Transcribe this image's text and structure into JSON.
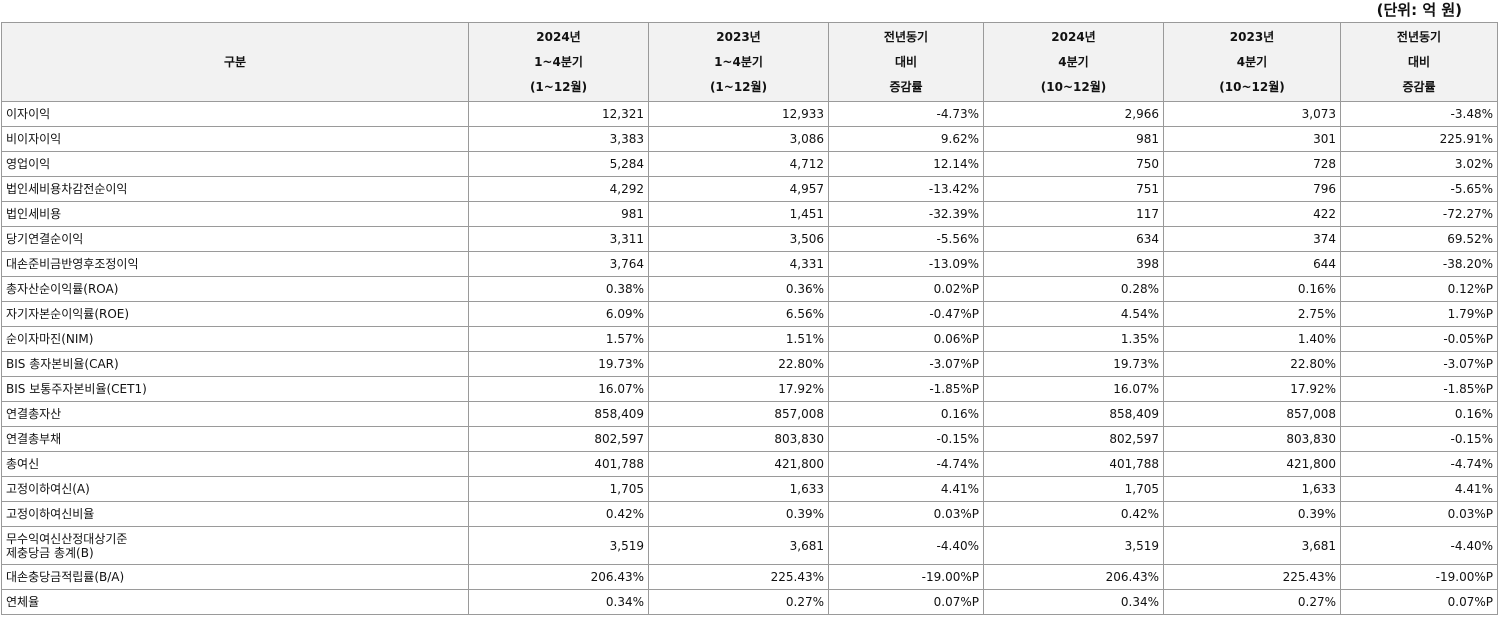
{
  "unit": "(단위: 억 원)",
  "table": {
    "header": [
      [
        "구분"
      ],
      [
        "2024년",
        "1~4분기",
        "(1~12월)"
      ],
      [
        "2023년",
        "1~4분기",
        "(1~12월)"
      ],
      [
        "전년동기",
        "대비",
        "증감률"
      ],
      [
        "2024년",
        "4분기",
        "(10~12월)"
      ],
      [
        "2023년",
        "4분기",
        "(10~12월)"
      ],
      [
        "전년동기",
        "대비",
        "증감률"
      ]
    ],
    "rows": [
      [
        [
          "이자이익"
        ],
        "12,321",
        "12,933",
        "-4.73%",
        "2,966",
        "3,073",
        "-3.48%"
      ],
      [
        [
          "비이자이익"
        ],
        "3,383",
        "3,086",
        "9.62%",
        "981",
        "301",
        "225.91%"
      ],
      [
        [
          "영업이익"
        ],
        "5,284",
        "4,712",
        "12.14%",
        "750",
        "728",
        "3.02%"
      ],
      [
        [
          "법인세비용차감전순이익"
        ],
        "4,292",
        "4,957",
        "-13.42%",
        "751",
        "796",
        "-5.65%"
      ],
      [
        [
          "법인세비용"
        ],
        "981",
        "1,451",
        "-32.39%",
        "117",
        "422",
        "-72.27%"
      ],
      [
        [
          "당기연결순이익"
        ],
        "3,311",
        "3,506",
        "-5.56%",
        "634",
        "374",
        "69.52%"
      ],
      [
        [
          "대손준비금반영후조정이익"
        ],
        "3,764",
        "4,331",
        "-13.09%",
        "398",
        "644",
        "-38.20%"
      ],
      [
        [
          "총자산순이익률(ROA)"
        ],
        "0.38%",
        "0.36%",
        "0.02%P",
        "0.28%",
        "0.16%",
        "0.12%P"
      ],
      [
        [
          "자기자본순이익률(ROE)"
        ],
        "6.09%",
        "6.56%",
        "-0.47%P",
        "4.54%",
        "2.75%",
        "1.79%P"
      ],
      [
        [
          "순이자마진(NIM)"
        ],
        "1.57%",
        "1.51%",
        "0.06%P",
        "1.35%",
        "1.40%",
        "-0.05%P"
      ],
      [
        [
          "BIS 총자본비율(CAR)"
        ],
        "19.73%",
        "22.80%",
        "-3.07%P",
        "19.73%",
        "22.80%",
        "-3.07%P"
      ],
      [
        [
          "BIS 보통주자본비율(CET1)"
        ],
        "16.07%",
        "17.92%",
        "-1.85%P",
        "16.07%",
        "17.92%",
        "-1.85%P"
      ],
      [
        [
          "연결총자산"
        ],
        "858,409",
        "857,008",
        "0.16%",
        "858,409",
        "857,008",
        "0.16%"
      ],
      [
        [
          "연결총부채"
        ],
        "802,597",
        "803,830",
        "-0.15%",
        "802,597",
        "803,830",
        "-0.15%"
      ],
      [
        [
          "총여신"
        ],
        "401,788",
        "421,800",
        "-4.74%",
        "401,788",
        "421,800",
        "-4.74%"
      ],
      [
        [
          "고정이하여신(A)"
        ],
        "1,705",
        "1,633",
        "4.41%",
        "1,705",
        "1,633",
        "4.41%"
      ],
      [
        [
          "고정이하여신비율"
        ],
        "0.42%",
        "0.39%",
        "0.03%P",
        "0.42%",
        "0.39%",
        "0.03%P"
      ],
      [
        [
          "무수익여신산정대상기준",
          "제충당금 총계(B)"
        ],
        "3,519",
        "3,681",
        "-4.40%",
        "3,519",
        "3,681",
        "-4.40%"
      ],
      [
        [
          "대손충당금적립률(B/A)"
        ],
        "206.43%",
        "225.43%",
        "-19.00%P",
        "206.43%",
        "225.43%",
        "-19.00%P"
      ],
      [
        [
          "연체율"
        ],
        "0.34%",
        "0.27%",
        "0.07%P",
        "0.34%",
        "0.27%",
        "0.07%P"
      ]
    ]
  }
}
